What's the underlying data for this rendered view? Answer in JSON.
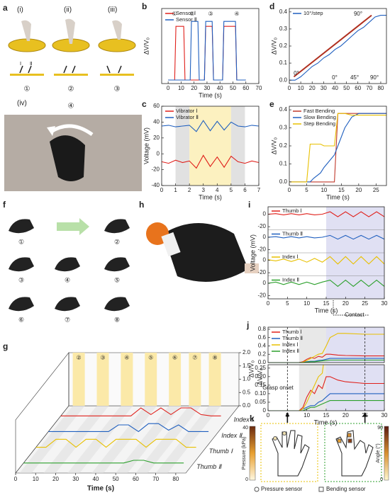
{
  "labels": {
    "a": "a",
    "a_i": "(i)",
    "a_ii": "(ii)",
    "a_iii": "(iii)",
    "a_n": [
      "①",
      "②",
      "③"
    ],
    "a_sensor": [
      "Ⅰ",
      "Ⅱ"
    ],
    "a_iv": "(iv)",
    "a_iv_n": "④",
    "f": "f",
    "f_n": [
      "①",
      "②",
      "③",
      "④",
      "⑤",
      "⑥",
      "⑦",
      "⑧"
    ],
    "h": "h",
    "k": "k",
    "pressure": "Pressure (kPa)",
    "pressure_ticks": [
      0,
      40
    ],
    "angle": "Angle (°)",
    "angle_ticks": [
      0,
      90
    ],
    "pressure_sensor": "Pressure sensor",
    "bending_sensor": "Bending sensor"
  },
  "chart_data": [
    {
      "type": "line",
      "panel": "b",
      "xlabel": "Time (s)",
      "ylabel": "ΔV/V₀",
      "xlim": [
        -5,
        70
      ],
      "xticks": [
        0,
        10,
        20,
        30,
        40,
        50,
        60,
        70
      ],
      "ylim": [
        -0.05,
        1
      ],
      "legend": "top-left",
      "x": [
        0,
        5,
        6,
        12,
        13,
        17,
        18,
        23,
        24,
        28,
        29,
        34,
        35,
        42,
        43,
        52,
        53,
        60
      ],
      "series": [
        {
          "name": "Sensor Ⅰ",
          "color": "#e0201b",
          "values": [
            0,
            0,
            0.75,
            0.75,
            0,
            0,
            0,
            0,
            0,
            0,
            0.75,
            0.75,
            0,
            0,
            0.75,
            0.75,
            0,
            0
          ]
        },
        {
          "name": "Sensor Ⅱ",
          "color": "#1f5fbf",
          "values": [
            0,
            0,
            0,
            0,
            0,
            0,
            0.82,
            0.82,
            0,
            0,
            0.82,
            0.82,
            0,
            0,
            0.82,
            0.82,
            0,
            0
          ]
        }
      ],
      "annotations": [
        "①",
        "②",
        "③",
        "④"
      ]
    },
    {
      "type": "line",
      "panel": "d",
      "ylabel": "ΔV/V₀",
      "xlim": [
        0,
        85
      ],
      "xticks": [
        0,
        10,
        20,
        30,
        40,
        50,
        60,
        70,
        80
      ],
      "ylim": [
        -0.02,
        0.42
      ],
      "yticks": [
        {
          "value": 0,
          "label": "0.0"
        },
        0.1,
        0.2,
        0.3,
        0.4
      ],
      "legend": "top-left",
      "x": [
        0,
        5,
        10,
        15,
        20,
        25,
        30,
        35,
        40,
        45,
        50,
        55,
        60,
        65,
        70,
        75,
        80,
        85
      ],
      "series": [
        {
          "name": "10°/step",
          "color": "#1f5fbf",
          "values": [
            0,
            0,
            0.02,
            0.05,
            0.08,
            0.1,
            0.13,
            0.15,
            0.18,
            0.2,
            0.23,
            0.26,
            0.29,
            0.31,
            0.34,
            0.37,
            0.38,
            0.38
          ]
        }
      ],
      "annotations": [
        "0°",
        "90°",
        "0°",
        "45°",
        "90°"
      ]
    },
    {
      "type": "line",
      "panel": "c",
      "xlabel": "Time (s)",
      "ylabel": "Voltage (mV)",
      "xlim": [
        0,
        7
      ],
      "xticks": [
        0,
        1,
        2,
        3,
        4,
        5,
        6,
        7
      ],
      "ylim": [
        -40,
        60
      ],
      "yticks": [
        -40,
        -20,
        0,
        20,
        40,
        60
      ],
      "legend": "top-left",
      "regions": [
        {
          "x": [
            1,
            2
          ],
          "color": "#d9d9d9"
        },
        {
          "x": [
            2,
            5
          ],
          "color": "#fbeeb0"
        },
        {
          "x": [
            5,
            6
          ],
          "color": "#d9d9d9"
        }
      ],
      "x": [
        0,
        0.5,
        1,
        1.5,
        2,
        2.5,
        3,
        3.5,
        4,
        4.5,
        5,
        5.5,
        6,
        6.5,
        7
      ],
      "series": [
        {
          "name": "Vibrator Ⅰ",
          "color": "#e0201b",
          "values": [
            -10,
            -12,
            -8,
            -11,
            -9,
            -18,
            -2,
            -16,
            -4,
            -17,
            -3,
            -10,
            -12,
            -9,
            -11
          ]
        },
        {
          "name": "Vibrator Ⅱ",
          "color": "#1f5fbf",
          "values": [
            35,
            36,
            34,
            35,
            36,
            28,
            42,
            29,
            41,
            30,
            40,
            35,
            34,
            36,
            35
          ]
        }
      ]
    },
    {
      "type": "line",
      "panel": "e",
      "xlabel": "Time (s)",
      "ylabel": "ΔV/V₀",
      "xlim": [
        0,
        28
      ],
      "xticks": [
        0,
        5,
        10,
        15,
        20,
        25
      ],
      "ylim": [
        -0.02,
        0.42
      ],
      "yticks": [
        {
          "value": 0,
          "label": "0.0"
        },
        0.1,
        0.2,
        0.3,
        0.4
      ],
      "legend": "top-left",
      "x": [
        0,
        5,
        6,
        7,
        9,
        10,
        13,
        14,
        16,
        18,
        20,
        22,
        28
      ],
      "series": [
        {
          "name": "Fast Bending",
          "color": "#c0392b",
          "values": [
            0,
            0,
            0,
            0,
            0,
            0,
            0,
            0.38,
            0.38,
            0.38,
            0.38,
            0.38,
            0.38
          ]
        },
        {
          "name": "Slow Bending",
          "color": "#1f5fbf",
          "values": [
            0,
            0,
            0,
            0.02,
            0.05,
            0.08,
            0.15,
            0.2,
            0.3,
            0.36,
            0.38,
            0.38,
            0.38
          ]
        },
        {
          "name": "Step Bending",
          "color": "#e8c000",
          "values": [
            0,
            0,
            0.21,
            0.21,
            0.21,
            0.2,
            0.2,
            0.38,
            0.38,
            0.37,
            0.37,
            0.37,
            0.37
          ]
        }
      ]
    },
    {
      "type": "strips",
      "panel": "i",
      "xlabel": "Time (s)",
      "ylabel": "Voltage (mV)",
      "xlim": [
        0,
        30
      ],
      "xticks": [
        0,
        5,
        10,
        15,
        20,
        25,
        30
      ],
      "ylim": [
        -25,
        12
      ],
      "yticks": [
        0,
        -20
      ],
      "regions": [
        {
          "x": [
            15,
            30
          ],
          "color": "#d8d8f0"
        }
      ],
      "x": [
        0,
        2,
        4,
        6,
        8,
        10,
        12,
        14,
        16,
        18,
        20,
        22,
        24,
        26,
        28,
        30
      ],
      "series": [
        {
          "name": "Thumb Ⅰ",
          "color": "#e0201b",
          "values": [
            0,
            1,
            -1,
            1,
            -1,
            1,
            -1,
            0,
            4,
            -4,
            4,
            -4,
            4,
            -4,
            4,
            -4
          ]
        },
        {
          "name": "Thumb Ⅱ",
          "color": "#1f5fbf",
          "values": [
            0,
            1,
            -1,
            1,
            -1,
            1,
            -1,
            0,
            3,
            -3,
            3,
            -3,
            3,
            -3,
            3,
            -3
          ]
        },
        {
          "name": "Index Ⅰ",
          "color": "#e8c000",
          "values": [
            1,
            -1,
            2,
            -2,
            2,
            -3,
            3,
            -3,
            6,
            -6,
            6,
            -6,
            6,
            -6,
            6,
            -6
          ]
        },
        {
          "name": "Index Ⅱ",
          "color": "#2ca02c",
          "values": [
            0,
            2,
            -2,
            2,
            -2,
            2,
            -2,
            2,
            5,
            -5,
            5,
            -5,
            5,
            -5,
            5,
            -5
          ]
        }
      ],
      "annotations": [
        "Contact"
      ]
    },
    {
      "type": "split",
      "panel": "j",
      "xlabel": "Time (s)",
      "ylabel": "ΔV/V₀",
      "xlim": [
        0,
        30
      ],
      "xticks": [
        0,
        5,
        10,
        15,
        20,
        25,
        30
      ],
      "ylim": [
        0,
        0.85
      ],
      "yticks": [
        {
          "value": 0,
          "label": "0.0"
        },
        0.2,
        0.4,
        0.6,
        0.8
      ],
      "zoom_ylim": [
        0,
        0.27
      ],
      "zoom_yticks": [
        0,
        0.05,
        {
          "value": 0.1,
          "label": "0.10"
        },
        0.15,
        {
          "value": 0.2,
          "label": "0.20"
        },
        0.25
      ],
      "legend": "top-left",
      "regions": [
        {
          "x": [
            8,
            15
          ],
          "color": "#e2e2e2"
        },
        {
          "x": [
            15,
            30
          ],
          "color": "#d8d8f0"
        }
      ],
      "snapshot_times": [
        5,
        25
      ],
      "x": [
        0,
        5,
        8,
        9,
        10,
        11,
        12,
        13,
        14,
        15,
        16,
        18,
        20,
        25,
        30
      ],
      "series": [
        {
          "name": "Thumb Ⅰ",
          "color": "#e0201b",
          "values": [
            0,
            0,
            0,
            0.02,
            0.08,
            0.12,
            0.1,
            0.15,
            0.13,
            0.2,
            0.2,
            0.18,
            0.17,
            0.16,
            0.16
          ]
        },
        {
          "name": "Thumb Ⅱ",
          "color": "#1f5fbf",
          "values": [
            0,
            0,
            0,
            0.01,
            0.02,
            0.03,
            0.03,
            0.05,
            0.06,
            0.08,
            0.1,
            0.1,
            0.1,
            0.1,
            0.1
          ]
        },
        {
          "name": "Index Ⅰ",
          "color": "#e8c000",
          "values": [
            0,
            0,
            0,
            0.01,
            0.05,
            0.1,
            0.15,
            0.2,
            0.22,
            0.4,
            0.6,
            0.7,
            0.7,
            0.68,
            0.68
          ]
        },
        {
          "name": "Index Ⅱ",
          "color": "#2ca02c",
          "values": [
            0,
            0,
            0,
            0,
            0.01,
            0.02,
            0.02,
            0.03,
            0.04,
            0.05,
            0.06,
            0.06,
            0.06,
            0.06,
            0.06
          ]
        }
      ],
      "annotations": [
        "Grasp onset"
      ]
    },
    {
      "type": "waterfall",
      "panel": "g",
      "xlabel": "Time (s)",
      "zlabel": "ΔV/V₀",
      "xlim": [
        0,
        85
      ],
      "xticks": [
        0,
        10,
        20,
        30,
        40,
        50,
        60,
        70,
        80
      ],
      "zlim": [
        0,
        2
      ],
      "zticks": [
        {
          "value": 0,
          "label": "0.0"
        },
        0.5,
        {
          "value": 1,
          "label": "1.0"
        },
        1.5,
        {
          "value": 2,
          "label": "2.0"
        }
      ],
      "gesture_bands": [
        {
          "label": "②",
          "x": [
            2,
            8
          ]
        },
        {
          "label": "③",
          "x": [
            14,
            20
          ]
        },
        {
          "label": "④",
          "x": [
            26,
            32
          ]
        },
        {
          "label": "⑤",
          "x": [
            38,
            44
          ]
        },
        {
          "label": "⑥",
          "x": [
            50,
            56
          ]
        },
        {
          "label": "⑦",
          "x": [
            60,
            66
          ]
        },
        {
          "label": "⑧",
          "x": [
            70,
            76
          ]
        }
      ],
      "x": [
        0,
        5,
        10,
        15,
        20,
        25,
        30,
        35,
        40,
        45,
        50,
        55,
        60,
        65,
        70,
        75,
        80
      ],
      "series": [
        {
          "name": "Index Ⅰ",
          "color": "#e0201b",
          "values": [
            0,
            0,
            0,
            0,
            0,
            0,
            0,
            0,
            0.3,
            0.05,
            0.3,
            0.05,
            0.3,
            0.3,
            0.05,
            0,
            0
          ]
        },
        {
          "name": "Index Ⅱ",
          "color": "#1f5fbf",
          "values": [
            0,
            0,
            0,
            0,
            0,
            0,
            0,
            0.25,
            0.25,
            0,
            0.3,
            0.3,
            0.05,
            0.25,
            0,
            0,
            0
          ]
        },
        {
          "name": "Thumb Ⅰ",
          "color": "#e8c000",
          "values": [
            0,
            0,
            0.3,
            0.3,
            0,
            0.3,
            0.3,
            0,
            0.3,
            0.3,
            0.3,
            0,
            0.3,
            0.3,
            0.3,
            0,
            0
          ]
        },
        {
          "name": "Thumb Ⅱ",
          "color": "#2ca02c",
          "values": [
            0,
            0,
            0,
            0,
            0,
            0,
            0,
            0,
            0,
            0,
            0,
            0.1,
            0.1,
            0,
            0,
            0,
            0
          ]
        }
      ]
    }
  ]
}
